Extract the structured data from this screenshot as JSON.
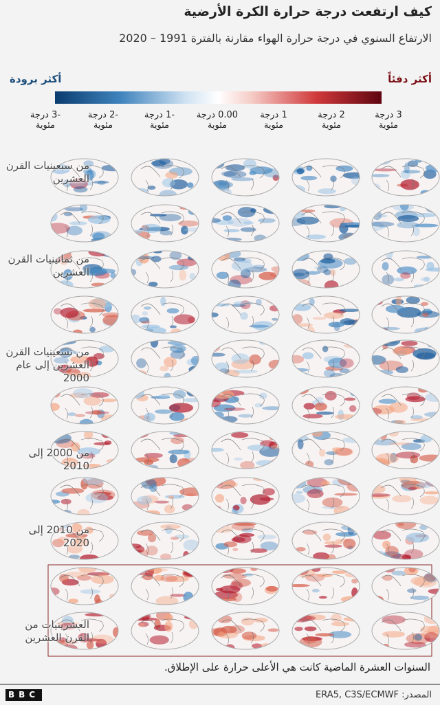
{
  "header": {
    "title": "كيف ارتفعت درجة حرارة الكرة الأرضية",
    "subtitle": "الارتفاع السنوي في درجة حرارة الهواء مقارنة بالفترة 1991 – 2020"
  },
  "legend": {
    "cold": "أكثر برودة",
    "warm": "أكثر دفئاً",
    "ticks": [
      "3 درجة مئوية",
      "2 درجة مئوية",
      "1 درجة مئوية",
      "0.00 درجة مئوية",
      "-1 درجة مئوية",
      "-2 درجة مئوية",
      "-3 درجة مئوية"
    ]
  },
  "row_labels": [
    "من سبعينيات القرن العشرين",
    "من ثمانينيات القرن العشرين",
    "من تسعينيات القرن العشرين إلى عام 2000",
    "من 2000 إلى 2010",
    "من 2010 إلى 2020",
    "العشرينيات من القرن العشرين"
  ],
  "note": "السنوات العشرة الماضية كانت هي الأعلى حرارة على الإطلاق.",
  "footer": {
    "logo": "BBC",
    "source": "المصدر: ERA5, C3S/ECMWF"
  }
}
